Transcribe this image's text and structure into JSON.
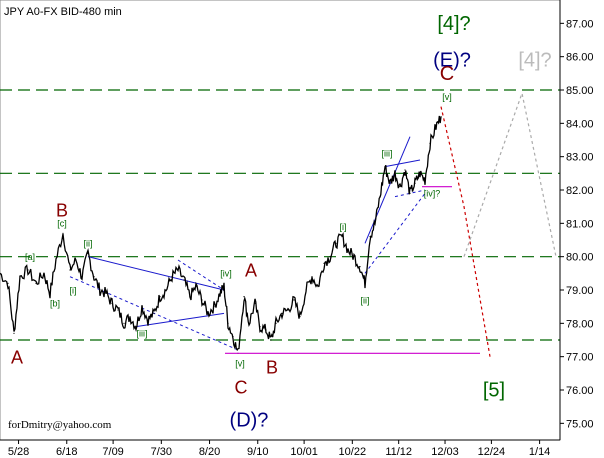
{
  "chart_data": {
    "type": "line",
    "title": "JPY A0-FX BID-480 min",
    "credit": "forDmitry@yahoo.com",
    "ylim": [
      74.5,
      87.7
    ],
    "y_ticks": [
      75.0,
      76.0,
      77.0,
      78.0,
      79.0,
      80.0,
      81.0,
      82.0,
      83.0,
      84.0,
      85.0,
      86.0,
      87.0
    ],
    "y_tick_labels": [
      "75.00",
      "76.00",
      "77.00",
      "78.00",
      "79.00",
      "80.00",
      "81.00",
      "82.00",
      "83.00",
      "84.00",
      "85.00",
      "86.00",
      "87.00"
    ],
    "x_ticks": [
      "5/28",
      "6/18",
      "7/09",
      "7/30",
      "8/20",
      "9/10",
      "10/01",
      "10/22",
      "11/12",
      "12/03",
      "12/24",
      "1/14"
    ],
    "grid": false,
    "levels": [
      {
        "value": 85.0,
        "color": "#006600"
      },
      {
        "value": 82.5,
        "color": "#006600"
      },
      {
        "value": 80.0,
        "color": "#006600"
      },
      {
        "value": 77.5,
        "color": "#006600"
      }
    ],
    "support_lines": [
      {
        "from": {
          "t": 225,
          "y": 77.1
        },
        "to": {
          "t": 480,
          "y": 77.1
        },
        "color": "#cc00cc"
      },
      {
        "from": {
          "t": 422,
          "y": 82.1
        },
        "to": {
          "t": 452,
          "y": 82.1
        },
        "color": "#cc00cc"
      }
    ],
    "series": [
      {
        "values": [
          {
            "t": 0,
            "y": 79.5
          },
          {
            "t": 8,
            "y": 79.2
          },
          {
            "t": 14,
            "y": 77.7
          },
          {
            "t": 20,
            "y": 79.4
          },
          {
            "t": 28,
            "y": 79.6
          },
          {
            "t": 36,
            "y": 79.2
          },
          {
            "t": 44,
            "y": 79.5
          },
          {
            "t": 50,
            "y": 78.9
          },
          {
            "t": 56,
            "y": 79.9
          },
          {
            "t": 63,
            "y": 80.7
          },
          {
            "t": 70,
            "y": 79.6
          },
          {
            "t": 76,
            "y": 79.9
          },
          {
            "t": 82,
            "y": 79.4
          },
          {
            "t": 88,
            "y": 80.1
          },
          {
            "t": 94,
            "y": 79.4
          },
          {
            "t": 100,
            "y": 79.0
          },
          {
            "t": 106,
            "y": 78.9
          },
          {
            "t": 112,
            "y": 78.6
          },
          {
            "t": 118,
            "y": 78.4
          },
          {
            "t": 124,
            "y": 78.0
          },
          {
            "t": 130,
            "y": 78.2
          },
          {
            "t": 136,
            "y": 77.9
          },
          {
            "t": 142,
            "y": 78.5
          },
          {
            "t": 148,
            "y": 78.1
          },
          {
            "t": 154,
            "y": 78.3
          },
          {
            "t": 160,
            "y": 78.8
          },
          {
            "t": 166,
            "y": 79.0
          },
          {
            "t": 172,
            "y": 79.4
          },
          {
            "t": 178,
            "y": 79.6
          },
          {
            "t": 184,
            "y": 79.3
          },
          {
            "t": 190,
            "y": 78.8
          },
          {
            "t": 196,
            "y": 79.1
          },
          {
            "t": 202,
            "y": 78.7
          },
          {
            "t": 208,
            "y": 78.3
          },
          {
            "t": 214,
            "y": 78.5
          },
          {
            "t": 220,
            "y": 78.9
          },
          {
            "t": 224,
            "y": 79.1
          },
          {
            "t": 228,
            "y": 78.0
          },
          {
            "t": 233,
            "y": 77.6
          },
          {
            "t": 238,
            "y": 77.1
          },
          {
            "t": 244,
            "y": 78.8
          },
          {
            "t": 249,
            "y": 78.0
          },
          {
            "t": 255,
            "y": 78.6
          },
          {
            "t": 260,
            "y": 77.9
          },
          {
            "t": 266,
            "y": 77.8
          },
          {
            "t": 271,
            "y": 77.5
          },
          {
            "t": 276,
            "y": 78.0
          },
          {
            "t": 282,
            "y": 78.3
          },
          {
            "t": 288,
            "y": 78.4
          },
          {
            "t": 294,
            "y": 78.7
          },
          {
            "t": 300,
            "y": 78.2
          },
          {
            "t": 306,
            "y": 79.0
          },
          {
            "t": 312,
            "y": 79.4
          },
          {
            "t": 318,
            "y": 79.1
          },
          {
            "t": 324,
            "y": 79.8
          },
          {
            "t": 330,
            "y": 80.0
          },
          {
            "t": 336,
            "y": 80.4
          },
          {
            "t": 342,
            "y": 80.6
          },
          {
            "t": 348,
            "y": 80.2
          },
          {
            "t": 354,
            "y": 80.0
          },
          {
            "t": 360,
            "y": 79.7
          },
          {
            "t": 365,
            "y": 79.2
          },
          {
            "t": 370,
            "y": 80.6
          },
          {
            "t": 375,
            "y": 81.0
          },
          {
            "t": 380,
            "y": 81.8
          },
          {
            "t": 385,
            "y": 82.7
          },
          {
            "t": 390,
            "y": 82.2
          },
          {
            "t": 395,
            "y": 82.5
          },
          {
            "t": 400,
            "y": 82.1
          },
          {
            "t": 405,
            "y": 82.6
          },
          {
            "t": 410,
            "y": 81.9
          },
          {
            "t": 415,
            "y": 82.2
          },
          {
            "t": 420,
            "y": 82.5
          },
          {
            "t": 425,
            "y": 82.3
          },
          {
            "t": 430,
            "y": 83.4
          },
          {
            "t": 436,
            "y": 83.9
          },
          {
            "t": 441,
            "y": 84.2
          }
        ]
      }
    ],
    "forecasts": [
      {
        "points": [
          {
            "t": 441,
            "y": 84.5
          },
          {
            "t": 464,
            "y": 81.5
          },
          {
            "t": 490,
            "y": 77.0
          }
        ],
        "color": "#cc0000"
      },
      {
        "points": [
          {
            "t": 464,
            "y": 80.0
          },
          {
            "t": 522,
            "y": 84.9
          },
          {
            "t": 556,
            "y": 80.0
          }
        ],
        "color": "#aaaaaa"
      }
    ],
    "trend_lines": [
      {
        "from": {
          "t": 88,
          "y": 80.0
        },
        "to": {
          "t": 224,
          "y": 79.0
        }
      },
      {
        "from": {
          "t": 70,
          "y": 79.4
        },
        "to": {
          "t": 238,
          "y": 77.2
        }
      },
      {
        "from": {
          "t": 136,
          "y": 77.9
        },
        "to": {
          "t": 224,
          "y": 78.3
        }
      },
      {
        "from": {
          "t": 178,
          "y": 79.9
        },
        "to": {
          "t": 224,
          "y": 79.0
        }
      },
      {
        "from": {
          "t": 385,
          "y": 82.7
        },
        "to": {
          "t": 420,
          "y": 82.9
        }
      },
      {
        "from": {
          "t": 395,
          "y": 81.8
        },
        "to": {
          "t": 425,
          "y": 82.0
        }
      },
      {
        "from": {
          "t": 365,
          "y": 80.4
        },
        "to": {
          "t": 410,
          "y": 83.6
        }
      },
      {
        "from": {
          "t": 365,
          "y": 79.5
        },
        "to": {
          "t": 425,
          "y": 81.9
        }
      }
    ],
    "annotations": [
      {
        "text": "[4]?",
        "t": 454,
        "y": 86.8,
        "color": "#006600",
        "size": "big"
      },
      {
        "text": "(E)?",
        "t": 452,
        "y": 85.7,
        "color": "#000080",
        "size": "big"
      },
      {
        "text": "C",
        "t": 447,
        "y": 85.3,
        "color": "#880000",
        "size": "big"
      },
      {
        "text": "[v]",
        "t": 447,
        "y": 84.7,
        "color": "#006600",
        "size": "small"
      },
      {
        "text": "[4]?",
        "t": 535,
        "y": 85.7,
        "color": "#bbbbbb",
        "size": "big"
      },
      {
        "text": "[iii]",
        "t": 387,
        "y": 83.0,
        "color": "#006600",
        "size": "small"
      },
      {
        "text": "[iv]?",
        "t": 432,
        "y": 81.8,
        "color": "#006600",
        "size": "small"
      },
      {
        "text": "[i]",
        "t": 343,
        "y": 80.8,
        "color": "#006600",
        "size": "small"
      },
      {
        "text": "[ii]",
        "t": 365,
        "y": 78.6,
        "color": "#006600",
        "size": "small"
      },
      {
        "text": "[5]",
        "t": 494,
        "y": 75.8,
        "color": "#006600",
        "size": "big"
      },
      {
        "text": "B",
        "t": 62,
        "y": 81.2,
        "color": "#880000",
        "size": "mid"
      },
      {
        "text": "[c]",
        "t": 62,
        "y": 80.9,
        "color": "#006600",
        "size": "small"
      },
      {
        "text": "[a]",
        "t": 30,
        "y": 79.9,
        "color": "#006600",
        "size": "small"
      },
      {
        "text": "[ii]",
        "t": 88,
        "y": 80.3,
        "color": "#006600",
        "size": "small"
      },
      {
        "text": "[i]",
        "t": 73,
        "y": 78.9,
        "color": "#006600",
        "size": "small"
      },
      {
        "text": "[b]",
        "t": 55,
        "y": 78.5,
        "color": "#006600",
        "size": "small"
      },
      {
        "text": "[iii]",
        "t": 142,
        "y": 77.6,
        "color": "#006600",
        "size": "small"
      },
      {
        "text": "[iv]",
        "t": 226,
        "y": 79.4,
        "color": "#006600",
        "size": "small"
      },
      {
        "text": "A",
        "t": 251,
        "y": 79.4,
        "color": "#880000",
        "size": "mid"
      },
      {
        "text": "A",
        "t": 17,
        "y": 76.8,
        "color": "#880000",
        "size": "mid"
      },
      {
        "text": "[v]",
        "t": 240,
        "y": 76.7,
        "color": "#006600",
        "size": "small"
      },
      {
        "text": "C",
        "t": 241,
        "y": 75.9,
        "color": "#880000",
        "size": "mid"
      },
      {
        "text": "B",
        "t": 272,
        "y": 76.5,
        "color": "#880000",
        "size": "mid"
      },
      {
        "text": "(D)?",
        "t": 249,
        "y": 74.9,
        "color": "#000080",
        "size": "big"
      }
    ]
  }
}
